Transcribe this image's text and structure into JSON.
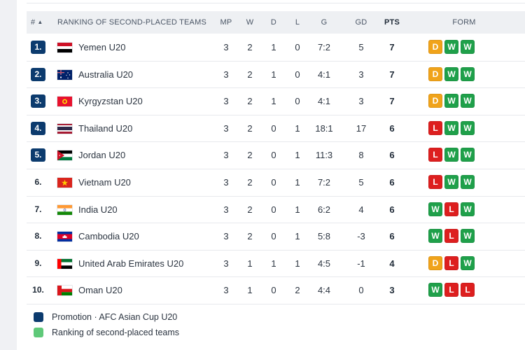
{
  "header": {
    "rank": "#",
    "sort_icon": "sort-up-icon",
    "team": "RANKING OF SECOND-PLACED TEAMS",
    "mp": "MP",
    "w": "W",
    "d": "D",
    "l": "L",
    "g": "G",
    "gd": "GD",
    "pts": "PTS",
    "form": "FORM"
  },
  "rows": [
    {
      "rank": "1.",
      "team": "Yemen U20",
      "flag": "yemen-flag-icon",
      "promo": true,
      "mp": "3",
      "w": "2",
      "d": "1",
      "l": "0",
      "g": "7:2",
      "gd": "5",
      "pts": "7",
      "form": [
        "D",
        "W",
        "W"
      ]
    },
    {
      "rank": "2.",
      "team": "Australia U20",
      "flag": "australia-flag-icon",
      "promo": true,
      "mp": "3",
      "w": "2",
      "d": "1",
      "l": "0",
      "g": "4:1",
      "gd": "3",
      "pts": "7",
      "form": [
        "D",
        "W",
        "W"
      ]
    },
    {
      "rank": "3.",
      "team": "Kyrgyzstan U20",
      "flag": "kyrgyzstan-flag-icon",
      "promo": true,
      "mp": "3",
      "w": "2",
      "d": "1",
      "l": "0",
      "g": "4:1",
      "gd": "3",
      "pts": "7",
      "form": [
        "D",
        "W",
        "W"
      ]
    },
    {
      "rank": "4.",
      "team": "Thailand U20",
      "flag": "thailand-flag-icon",
      "promo": true,
      "mp": "3",
      "w": "2",
      "d": "0",
      "l": "1",
      "g": "18:1",
      "gd": "17",
      "pts": "6",
      "form": [
        "L",
        "W",
        "W"
      ]
    },
    {
      "rank": "5.",
      "team": "Jordan U20",
      "flag": "jordan-flag-icon",
      "promo": true,
      "mp": "3",
      "w": "2",
      "d": "0",
      "l": "1",
      "g": "11:3",
      "gd": "8",
      "pts": "6",
      "form": [
        "L",
        "W",
        "W"
      ]
    },
    {
      "rank": "6.",
      "team": "Vietnam U20",
      "flag": "vietnam-flag-icon",
      "promo": false,
      "mp": "3",
      "w": "2",
      "d": "0",
      "l": "1",
      "g": "7:2",
      "gd": "5",
      "pts": "6",
      "form": [
        "L",
        "W",
        "W"
      ]
    },
    {
      "rank": "7.",
      "team": "India U20",
      "flag": "india-flag-icon",
      "promo": false,
      "mp": "3",
      "w": "2",
      "d": "0",
      "l": "1",
      "g": "6:2",
      "gd": "4",
      "pts": "6",
      "form": [
        "W",
        "L",
        "W"
      ]
    },
    {
      "rank": "8.",
      "team": "Cambodia U20",
      "flag": "cambodia-flag-icon",
      "promo": false,
      "mp": "3",
      "w": "2",
      "d": "0",
      "l": "1",
      "g": "5:8",
      "gd": "-3",
      "pts": "6",
      "form": [
        "W",
        "L",
        "W"
      ]
    },
    {
      "rank": "9.",
      "team": "United Arab Emirates U20",
      "flag": "uae-flag-icon",
      "promo": false,
      "mp": "3",
      "w": "1",
      "d": "1",
      "l": "1",
      "g": "4:5",
      "gd": "-1",
      "pts": "4",
      "form": [
        "D",
        "L",
        "W"
      ]
    },
    {
      "rank": "10.",
      "team": "Oman U20",
      "flag": "oman-flag-icon",
      "promo": false,
      "mp": "3",
      "w": "1",
      "d": "0",
      "l": "2",
      "g": "4:4",
      "gd": "0",
      "pts": "3",
      "form": [
        "W",
        "L",
        "L"
      ]
    }
  ],
  "legend": [
    {
      "label": "Promotion · AFC Asian Cup U20",
      "color": "#0c3b6e"
    },
    {
      "label": "Ranking of second-placed teams",
      "color": "#5fc979"
    }
  ],
  "colors": {
    "promotion": "#0c3b6e",
    "win": "#1fa04a",
    "draw": "#f0a31a",
    "loss": "#dd1f1f"
  }
}
